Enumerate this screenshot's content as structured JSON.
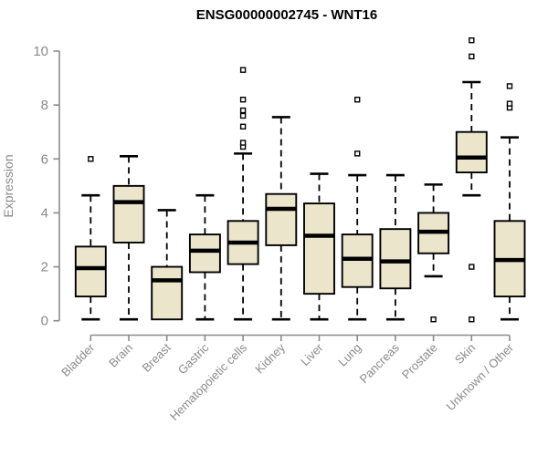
{
  "chart_data": {
    "type": "boxplot",
    "title": "ENSG00000002745 - WNT16",
    "ylabel": "Expression",
    "xlabel": "",
    "y_ticks": [
      0,
      2,
      4,
      6,
      8,
      10
    ],
    "ylim": [
      0,
      10.5
    ],
    "grid": "off",
    "categories": [
      "Bladder",
      "Brain",
      "Breast",
      "Gastric",
      "Hematopoietic cells",
      "Kidney",
      "Liver",
      "Lung",
      "Pancreas",
      "Prostate",
      "Skin",
      "Unknown / Other"
    ],
    "boxes": [
      {
        "category": "Bladder",
        "low": 0.05,
        "q1": 0.9,
        "median": 1.95,
        "q3": 2.75,
        "high": 4.65,
        "outliers": [
          6.0
        ]
      },
      {
        "category": "Brain",
        "low": 0.05,
        "q1": 2.9,
        "median": 4.4,
        "q3": 5.0,
        "high": 6.1,
        "outliers": []
      },
      {
        "category": "Breast",
        "low": 0.05,
        "q1": 0.05,
        "median": 1.5,
        "q3": 2.0,
        "high": 4.1,
        "outliers": []
      },
      {
        "category": "Gastric",
        "low": 0.05,
        "q1": 1.8,
        "median": 2.6,
        "q3": 3.2,
        "high": 4.65,
        "outliers": []
      },
      {
        "category": "Hematopoietic cells",
        "low": 0.05,
        "q1": 2.1,
        "median": 2.9,
        "q3": 3.7,
        "high": 6.2,
        "outliers": [
          6.45,
          6.6,
          7.2,
          7.6,
          7.8,
          8.2,
          9.3
        ]
      },
      {
        "category": "Kidney",
        "low": 0.05,
        "q1": 2.8,
        "median": 4.15,
        "q3": 4.7,
        "high": 7.55,
        "outliers": []
      },
      {
        "category": "Liver",
        "low": 0.05,
        "q1": 1.0,
        "median": 3.15,
        "q3": 4.35,
        "high": 5.45,
        "outliers": []
      },
      {
        "category": "Lung",
        "low": 0.05,
        "q1": 1.25,
        "median": 2.3,
        "q3": 3.2,
        "high": 5.4,
        "outliers": [
          6.2,
          8.2
        ]
      },
      {
        "category": "Pancreas",
        "low": 0.05,
        "q1": 1.2,
        "median": 2.2,
        "q3": 3.4,
        "high": 5.4,
        "outliers": []
      },
      {
        "category": "Prostate",
        "low": 1.65,
        "q1": 2.5,
        "median": 3.3,
        "q3": 4.0,
        "high": 5.05,
        "outliers": [
          0.05
        ]
      },
      {
        "category": "Skin",
        "low": 4.65,
        "q1": 5.5,
        "median": 6.05,
        "q3": 7.0,
        "high": 8.85,
        "outliers": [
          0.05,
          2.0,
          9.8,
          10.4
        ]
      },
      {
        "category": "Unknown / Other",
        "low": 0.05,
        "q1": 0.9,
        "median": 2.25,
        "q3": 3.7,
        "high": 6.8,
        "outliers": [
          7.9,
          8.05,
          8.7
        ]
      }
    ],
    "colors": {
      "box_fill": "#EBE5CC",
      "box_border": "#000000",
      "median": "#000000",
      "whisker": "#000000",
      "outlier_fill": "#FFFFFF",
      "axis": "#8A8A8A",
      "tick_label": "#8A8A8A",
      "title": "#000000"
    },
    "legend": "none"
  }
}
